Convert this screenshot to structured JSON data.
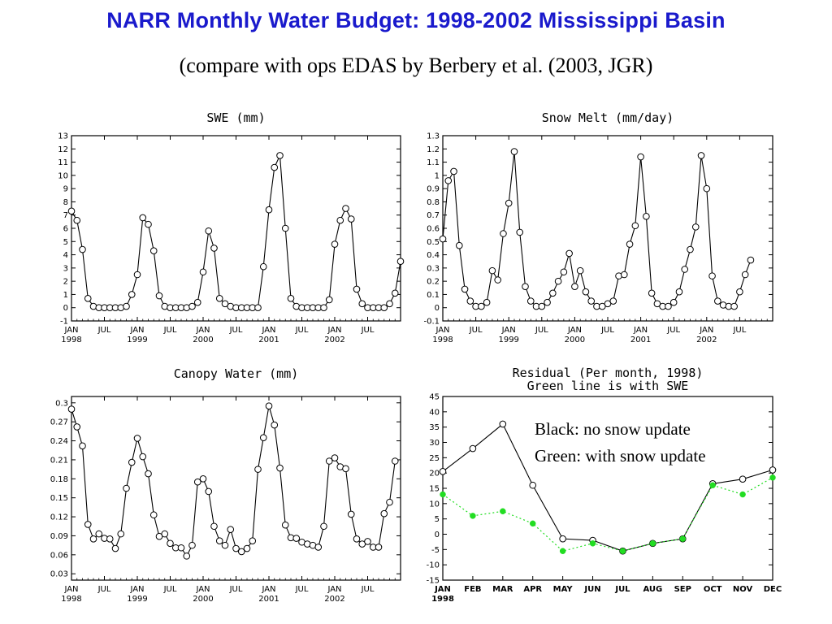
{
  "title": "NARR Monthly Water Budget: 1998-2002 Mississippi Basin",
  "subtitle": "(compare with ops EDAS by Berbery et al. (2003, JGR)",
  "colors": {
    "title": "#1a1acc",
    "series": "#000000",
    "green": "#22dd22"
  },
  "chart_data": [
    {
      "type": "line",
      "title": "SWE (mm)",
      "ylim": [
        -1,
        13
      ],
      "yticks": [
        "-1",
        "0",
        "1",
        "2",
        "3",
        "4",
        "5",
        "6",
        "7",
        "8",
        "9",
        "10",
        "11",
        "12",
        "13"
      ],
      "xtick_labels": [
        {
          "top": "JAN",
          "bottom": "1998"
        },
        {
          "top": "JUL",
          "bottom": ""
        },
        {
          "top": "JAN",
          "bottom": "1999"
        },
        {
          "top": "JUL",
          "bottom": ""
        },
        {
          "top": "JAN",
          "bottom": "2000"
        },
        {
          "top": "JUL",
          "bottom": ""
        },
        {
          "top": "JAN",
          "bottom": "2001"
        },
        {
          "top": "JUL",
          "bottom": ""
        },
        {
          "top": "JAN",
          "bottom": "2002"
        },
        {
          "top": "JUL",
          "bottom": ""
        }
      ],
      "x_range": "Jan 1998 - Dec 2002 (monthly)",
      "values": [
        7.3,
        6.6,
        4.4,
        0.7,
        0.1,
        0.0,
        0.0,
        0.0,
        0.0,
        0.0,
        0.1,
        1.0,
        2.5,
        6.8,
        6.3,
        4.3,
        0.9,
        0.1,
        0.0,
        0.0,
        0.0,
        0.0,
        0.1,
        0.4,
        2.7,
        5.8,
        4.5,
        0.7,
        0.3,
        0.1,
        0.0,
        0.0,
        0.0,
        0.0,
        0.0,
        3.1,
        7.4,
        10.6,
        11.5,
        6.0,
        0.7,
        0.1,
        0.0,
        0.0,
        0.0,
        0.0,
        0.0,
        0.6,
        4.8,
        6.6,
        7.5,
        6.7,
        1.4,
        0.3,
        0.0,
        0.0,
        0.0,
        0.0,
        0.3,
        1.1,
        3.5
      ]
    },
    {
      "type": "line",
      "title": "Snow Melt (mm/day)",
      "ylim": [
        -0.1,
        1.3
      ],
      "yticks": [
        "-0.1",
        "0",
        "0.1",
        "0.2",
        "0.3",
        "0.4",
        "0.5",
        "0.6",
        "0.7",
        "0.8",
        "0.9",
        "1",
        "1.1",
        "1.2",
        "1.3"
      ],
      "xtick_labels": [
        {
          "top": "JAN",
          "bottom": "1998"
        },
        {
          "top": "JUL",
          "bottom": ""
        },
        {
          "top": "JAN",
          "bottom": "1999"
        },
        {
          "top": "JUL",
          "bottom": ""
        },
        {
          "top": "JAN",
          "bottom": "2000"
        },
        {
          "top": "JUL",
          "bottom": ""
        },
        {
          "top": "JAN",
          "bottom": "2001"
        },
        {
          "top": "JUL",
          "bottom": ""
        },
        {
          "top": "JAN",
          "bottom": "2002"
        },
        {
          "top": "JUL",
          "bottom": ""
        }
      ],
      "x_range": "Jan 1998 - Dec 2002 (monthly)",
      "values": [
        0.52,
        0.96,
        1.03,
        0.47,
        0.14,
        0.05,
        0.01,
        0.01,
        0.04,
        0.28,
        0.21,
        0.56,
        0.79,
        1.18,
        0.57,
        0.16,
        0.05,
        0.01,
        0.01,
        0.04,
        0.11,
        0.2,
        0.27,
        0.41,
        0.16,
        0.28,
        0.12,
        0.05,
        0.01,
        0.01,
        0.03,
        0.05,
        0.24,
        0.25,
        0.48,
        0.62,
        1.14,
        0.69,
        0.11,
        0.03,
        0.01,
        0.01,
        0.04,
        0.12,
        0.29,
        0.44,
        0.61,
        1.15,
        0.9,
        0.24,
        0.05,
        0.02,
        0.01,
        0.01,
        0.12,
        0.25,
        0.36
      ]
    },
    {
      "type": "line",
      "title": "Canopy Water (mm)",
      "ylim": [
        0.02,
        0.31
      ],
      "yticks": [
        "0.03",
        "0.06",
        "0.09",
        "0.12",
        "0.15",
        "0.18",
        "0.21",
        "0.24",
        "0.27",
        "0.3"
      ],
      "xtick_labels": [
        {
          "top": "JAN",
          "bottom": "1998"
        },
        {
          "top": "JUL",
          "bottom": ""
        },
        {
          "top": "JAN",
          "bottom": "1999"
        },
        {
          "top": "JUL",
          "bottom": ""
        },
        {
          "top": "JAN",
          "bottom": "2000"
        },
        {
          "top": "JUL",
          "bottom": ""
        },
        {
          "top": "JAN",
          "bottom": "2001"
        },
        {
          "top": "JUL",
          "bottom": ""
        },
        {
          "top": "JAN",
          "bottom": "2002"
        },
        {
          "top": "JUL",
          "bottom": ""
        }
      ],
      "x_range": "Jan 1998 - Dec 2002 (monthly)",
      "values": [
        0.29,
        0.262,
        0.232,
        0.108,
        0.085,
        0.093,
        0.086,
        0.085,
        0.07,
        0.093,
        0.165,
        0.206,
        0.244,
        0.215,
        0.188,
        0.123,
        0.089,
        0.093,
        0.078,
        0.071,
        0.071,
        0.058,
        0.075,
        0.175,
        0.18,
        0.16,
        0.105,
        0.082,
        0.075,
        0.1,
        0.07,
        0.065,
        0.07,
        0.082,
        0.195,
        0.245,
        0.295,
        0.265,
        0.197,
        0.107,
        0.087,
        0.086,
        0.08,
        0.077,
        0.075,
        0.072,
        0.105,
        0.208,
        0.213,
        0.199,
        0.196,
        0.124,
        0.085,
        0.077,
        0.081,
        0.072,
        0.072,
        0.125,
        0.143,
        0.208
      ]
    },
    {
      "type": "line",
      "title": "Residual (Per month, 1998)",
      "subtitle": "Green line is with SWE",
      "ylim": [
        -15,
        45
      ],
      "yticks": [
        "-15",
        "-10",
        "-5",
        "0",
        "5",
        "10",
        "15",
        "20",
        "25",
        "30",
        "35",
        "40",
        "45"
      ],
      "categories": [
        "JAN",
        "FEB",
        "MAR",
        "APR",
        "MAY",
        "JUN",
        "JUL",
        "AUG",
        "SEP",
        "OCT",
        "NOV",
        "DEC"
      ],
      "x_year_label": "1998",
      "series": [
        {
          "values": [
            20.5,
            28,
            36,
            16,
            -1.5,
            -2,
            -5.5,
            -3,
            -1.5,
            16.5,
            18,
            21
          ]
        },
        {
          "values": [
            13,
            6,
            7.5,
            3.5,
            -5.5,
            -3,
            -5.5,
            -3,
            -1.5,
            16,
            13,
            18.5
          ]
        }
      ],
      "annotation_lines": [
        "Black: no snow update",
        "Green: with snow update"
      ]
    }
  ]
}
